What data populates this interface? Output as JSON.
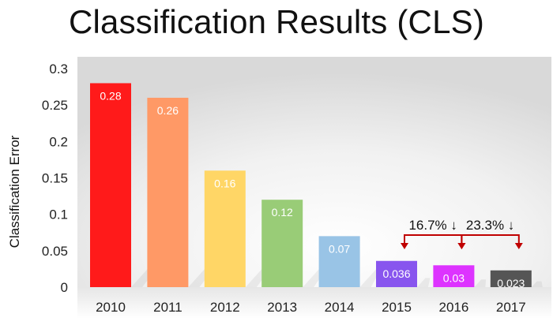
{
  "chart_data": {
    "type": "bar",
    "title": "Classification Results (CLS)",
    "ylabel": "Classification Error",
    "xlabel": "",
    "categories": [
      "2010",
      "2011",
      "2012",
      "2013",
      "2014",
      "2015",
      "2016",
      "2017"
    ],
    "values": [
      0.28,
      0.26,
      0.16,
      0.12,
      0.07,
      0.036,
      0.03,
      0.023
    ],
    "data_labels": [
      "0.28",
      "0.26",
      "0.16",
      "0.12",
      "0.07",
      "0.036",
      "0.03",
      "0.023"
    ],
    "colors": [
      "#ff1a1a",
      "#ff9966",
      "#ffd666",
      "#99cc77",
      "#99c4e6",
      "#8855ee",
      "#dd33ff",
      "#555555"
    ],
    "ylim": [
      0,
      0.3
    ],
    "yticks": [
      {
        "value": 0,
        "label": "0"
      },
      {
        "value": 0.05,
        "label": "0.05"
      },
      {
        "value": 0.1,
        "label": "0.1"
      },
      {
        "value": 0.15,
        "label": "0.15"
      },
      {
        "value": 0.2,
        "label": "0.2"
      },
      {
        "value": 0.25,
        "label": "0.25"
      },
      {
        "value": 0.3,
        "label": "0.3"
      }
    ],
    "grid": false,
    "legend": "none",
    "annotations": [
      {
        "text": "16.7% ↓",
        "from": "2015",
        "to": "2016"
      },
      {
        "text": "23.3% ↓",
        "from": "2016",
        "to": "2017"
      }
    ],
    "annotation_color": "#c00000"
  }
}
